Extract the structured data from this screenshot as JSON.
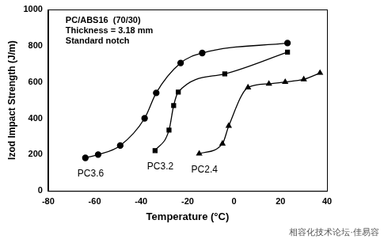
{
  "chart_data": {
    "type": "line",
    "x_label": "Temperature (°C)",
    "y_label": "Izod Impact Strength (J/m)",
    "annotations": [
      "PC/ABS16  (70/30)",
      "Thickness = 3.18 mm",
      "Standard notch"
    ],
    "watermark": "相容化技术论坛·佳易容",
    "xlim": [
      -80,
      40
    ],
    "xticks": [
      -80,
      -60,
      -40,
      -20,
      0,
      20,
      40
    ],
    "ylim": [
      0,
      1000
    ],
    "yticks": [
      0,
      200,
      400,
      600,
      800,
      1000
    ],
    "grid": false,
    "series": [
      {
        "name": "PC3.6",
        "color": "#000000",
        "marker": "circle",
        "line_style": "solid",
        "x": [
          -64,
          -58.5,
          -49,
          -38.5,
          -33.5,
          -23,
          -13.7,
          23
        ],
        "values": [
          182,
          200,
          250,
          400,
          540,
          705,
          760,
          815
        ]
      },
      {
        "name": "PC3.2",
        "color": "#000000",
        "marker": "square",
        "line_style": "solid",
        "x": [
          -34,
          -28,
          -26,
          -24,
          -4,
          23
        ],
        "values": [
          222,
          335,
          470,
          545,
          645,
          765
        ]
      },
      {
        "name": "PC2.4",
        "color": "#000000",
        "marker": "triangle",
        "line_style": "solid",
        "x": [
          -15,
          -5,
          -2.3,
          6,
          15,
          22,
          30,
          37
        ],
        "values": [
          205,
          260,
          358,
          570,
          590,
          600,
          615,
          650
        ]
      }
    ]
  }
}
